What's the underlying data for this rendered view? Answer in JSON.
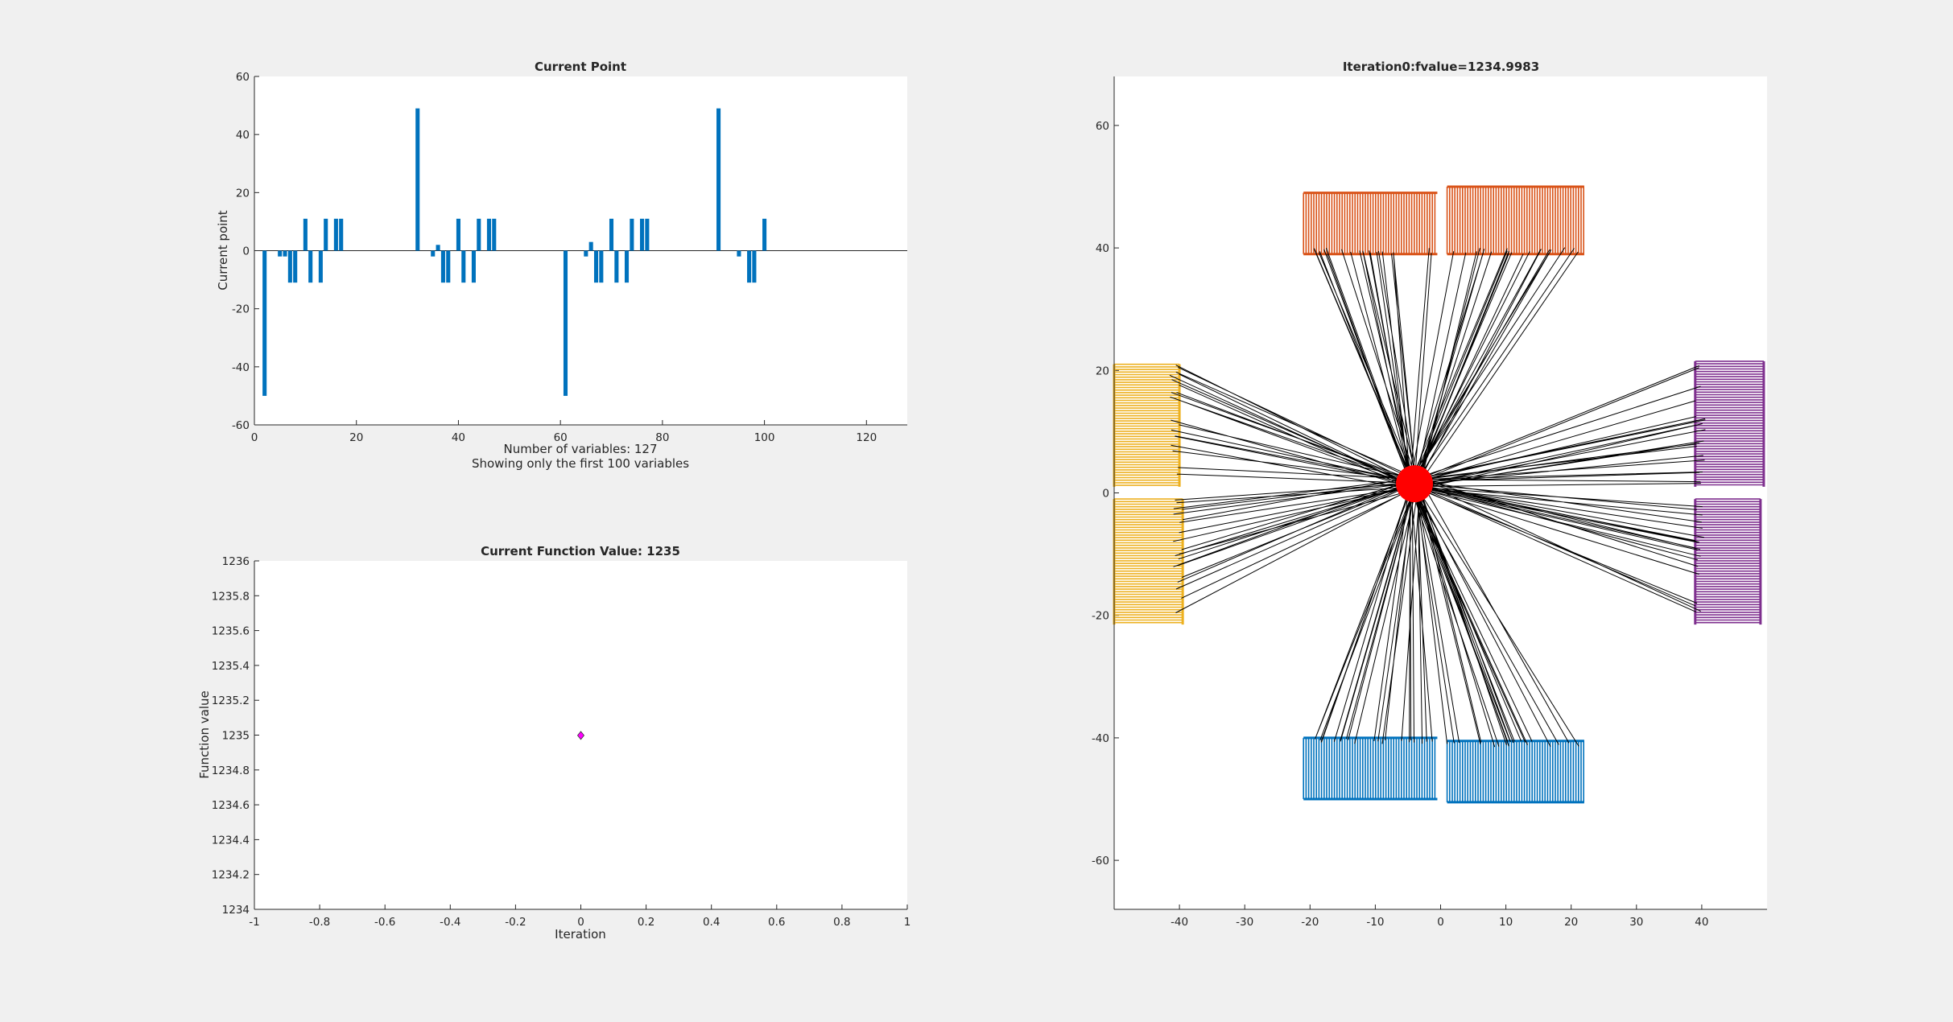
{
  "chart_data": [
    {
      "type": "bar",
      "title": "Current Point",
      "xlabel": "",
      "ylabel": "Current point",
      "xlim": [
        0,
        128
      ],
      "ylim": [
        -60,
        60
      ],
      "xticks": [
        0,
        20,
        40,
        60,
        80,
        100,
        120
      ],
      "yticks": [
        -60,
        -40,
        -20,
        0,
        20,
        40,
        60
      ],
      "notes": [
        "Number of variables: 127",
        "Showing only the first 100 variables"
      ],
      "color": "#0072bd",
      "x": [
        2,
        5,
        6,
        7,
        8,
        10,
        11,
        13,
        14,
        16,
        17,
        32,
        35,
        36,
        37,
        38,
        40,
        41,
        43,
        44,
        46,
        47,
        61,
        65,
        66,
        67,
        68,
        70,
        71,
        73,
        74,
        76,
        77,
        91,
        95,
        97,
        98,
        100
      ],
      "values": [
        -50,
        -2,
        -2,
        -11,
        -11,
        11,
        -11,
        -11,
        11,
        11,
        11,
        49,
        -2,
        2,
        -11,
        -11,
        11,
        -11,
        -11,
        11,
        11,
        11,
        -50,
        -2,
        3,
        -11,
        -11,
        11,
        -11,
        -11,
        11,
        11,
        11,
        49,
        -2,
        -11,
        -11,
        11
      ]
    },
    {
      "type": "scatter",
      "title": "Current Function Value: 1235",
      "xlabel": "Iteration",
      "ylabel": "Function value",
      "xlim": [
        -1,
        1
      ],
      "ylim": [
        1234,
        1236
      ],
      "xticks": [
        "-1",
        "-0.8",
        "-0.6",
        "-0.4",
        "-0.2",
        "0",
        "0.2",
        "0.4",
        "0.6",
        "0.8",
        "1"
      ],
      "yticks": [
        "1234",
        "1234.2",
        "1234.4",
        "1234.6",
        "1234.8",
        "1235",
        "1235.2",
        "1235.4",
        "1235.6",
        "1235.8",
        "1236"
      ],
      "points": [
        {
          "x": 0,
          "y": 1234.9983
        }
      ],
      "marker_color": "#ff00ff"
    },
    {
      "type": "scatter",
      "title": "Iteration0:fvalue=1234.9983",
      "xlabel": "",
      "ylabel": "",
      "xlim": [
        -50,
        50
      ],
      "ylim": [
        -68,
        68
      ],
      "xticks": [
        -40,
        -30,
        -20,
        -10,
        0,
        10,
        20,
        30,
        40
      ],
      "yticks": [
        -60,
        -40,
        -20,
        0,
        20,
        40,
        60
      ],
      "hub": {
        "x": -4,
        "y": 1.5,
        "color": "#ff0000"
      },
      "blocks": [
        {
          "color": "#d95319",
          "xmin": -21,
          "xmax": -0.5,
          "ymin": 39,
          "ymax": 49,
          "orient": "v"
        },
        {
          "color": "#d95319",
          "xmin": 1,
          "xmax": 22,
          "ymin": 39,
          "ymax": 50,
          "orient": "v"
        },
        {
          "color": "#edb120",
          "xmin": -50,
          "xmax": -40,
          "ymin": 1,
          "ymax": 21,
          "orient": "h"
        },
        {
          "color": "#edb120",
          "xmin": -50,
          "xmax": -39.5,
          "ymin": -21.5,
          "ymax": -1,
          "orient": "h"
        },
        {
          "color": "#7e2f8e",
          "xmin": 39,
          "xmax": 49.5,
          "ymin": 1,
          "ymax": 21.5,
          "orient": "h"
        },
        {
          "color": "#7e2f8e",
          "xmin": 39,
          "xmax": 49,
          "ymin": -21.5,
          "ymax": -1,
          "orient": "h"
        },
        {
          "color": "#0072bd",
          "xmin": -21,
          "xmax": -0.5,
          "ymin": -50,
          "ymax": -40,
          "orient": "v"
        },
        {
          "color": "#0072bd",
          "xmin": 1,
          "xmax": 22,
          "ymin": -50.5,
          "ymax": -40.5,
          "orient": "v"
        }
      ]
    }
  ]
}
